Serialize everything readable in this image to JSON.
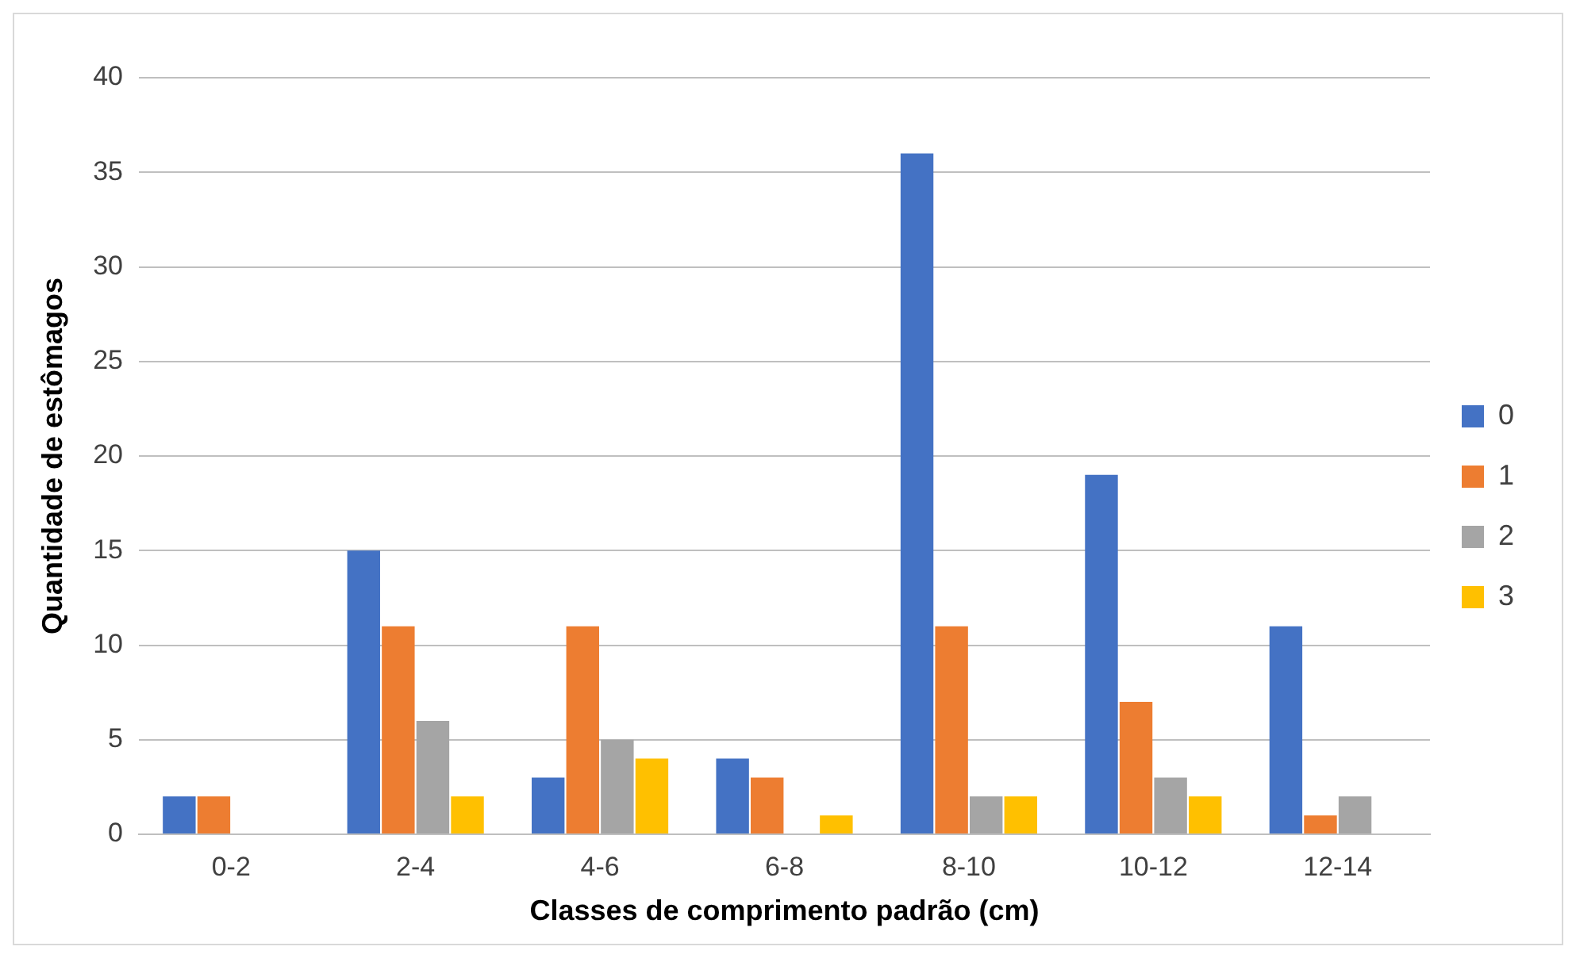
{
  "chart_data": {
    "type": "bar",
    "xlabel": "Classes de comprimento padrão (cm)",
    "ylabel": "Quantidade de estômagos",
    "categories": [
      "0-2",
      "2-4",
      "4-6",
      "6-8",
      "8-10",
      "10-12",
      "12-14"
    ],
    "series": [
      {
        "name": "0",
        "color": "#4472c4",
        "values": [
          2,
          15,
          3,
          4,
          36,
          19,
          11
        ]
      },
      {
        "name": "1",
        "color": "#ed7d31",
        "values": [
          2,
          11,
          11,
          3,
          11,
          7,
          1
        ]
      },
      {
        "name": "2",
        "color": "#a5a5a5",
        "values": [
          0,
          6,
          5,
          0,
          2,
          3,
          2
        ]
      },
      {
        "name": "3",
        "color": "#ffc000",
        "values": [
          0,
          2,
          4,
          1,
          2,
          2,
          0
        ]
      }
    ],
    "ylim": [
      0,
      40
    ],
    "yticks": [
      0,
      5,
      10,
      15,
      20,
      25,
      30,
      35,
      40
    ],
    "grid": "y",
    "legend": "right"
  }
}
